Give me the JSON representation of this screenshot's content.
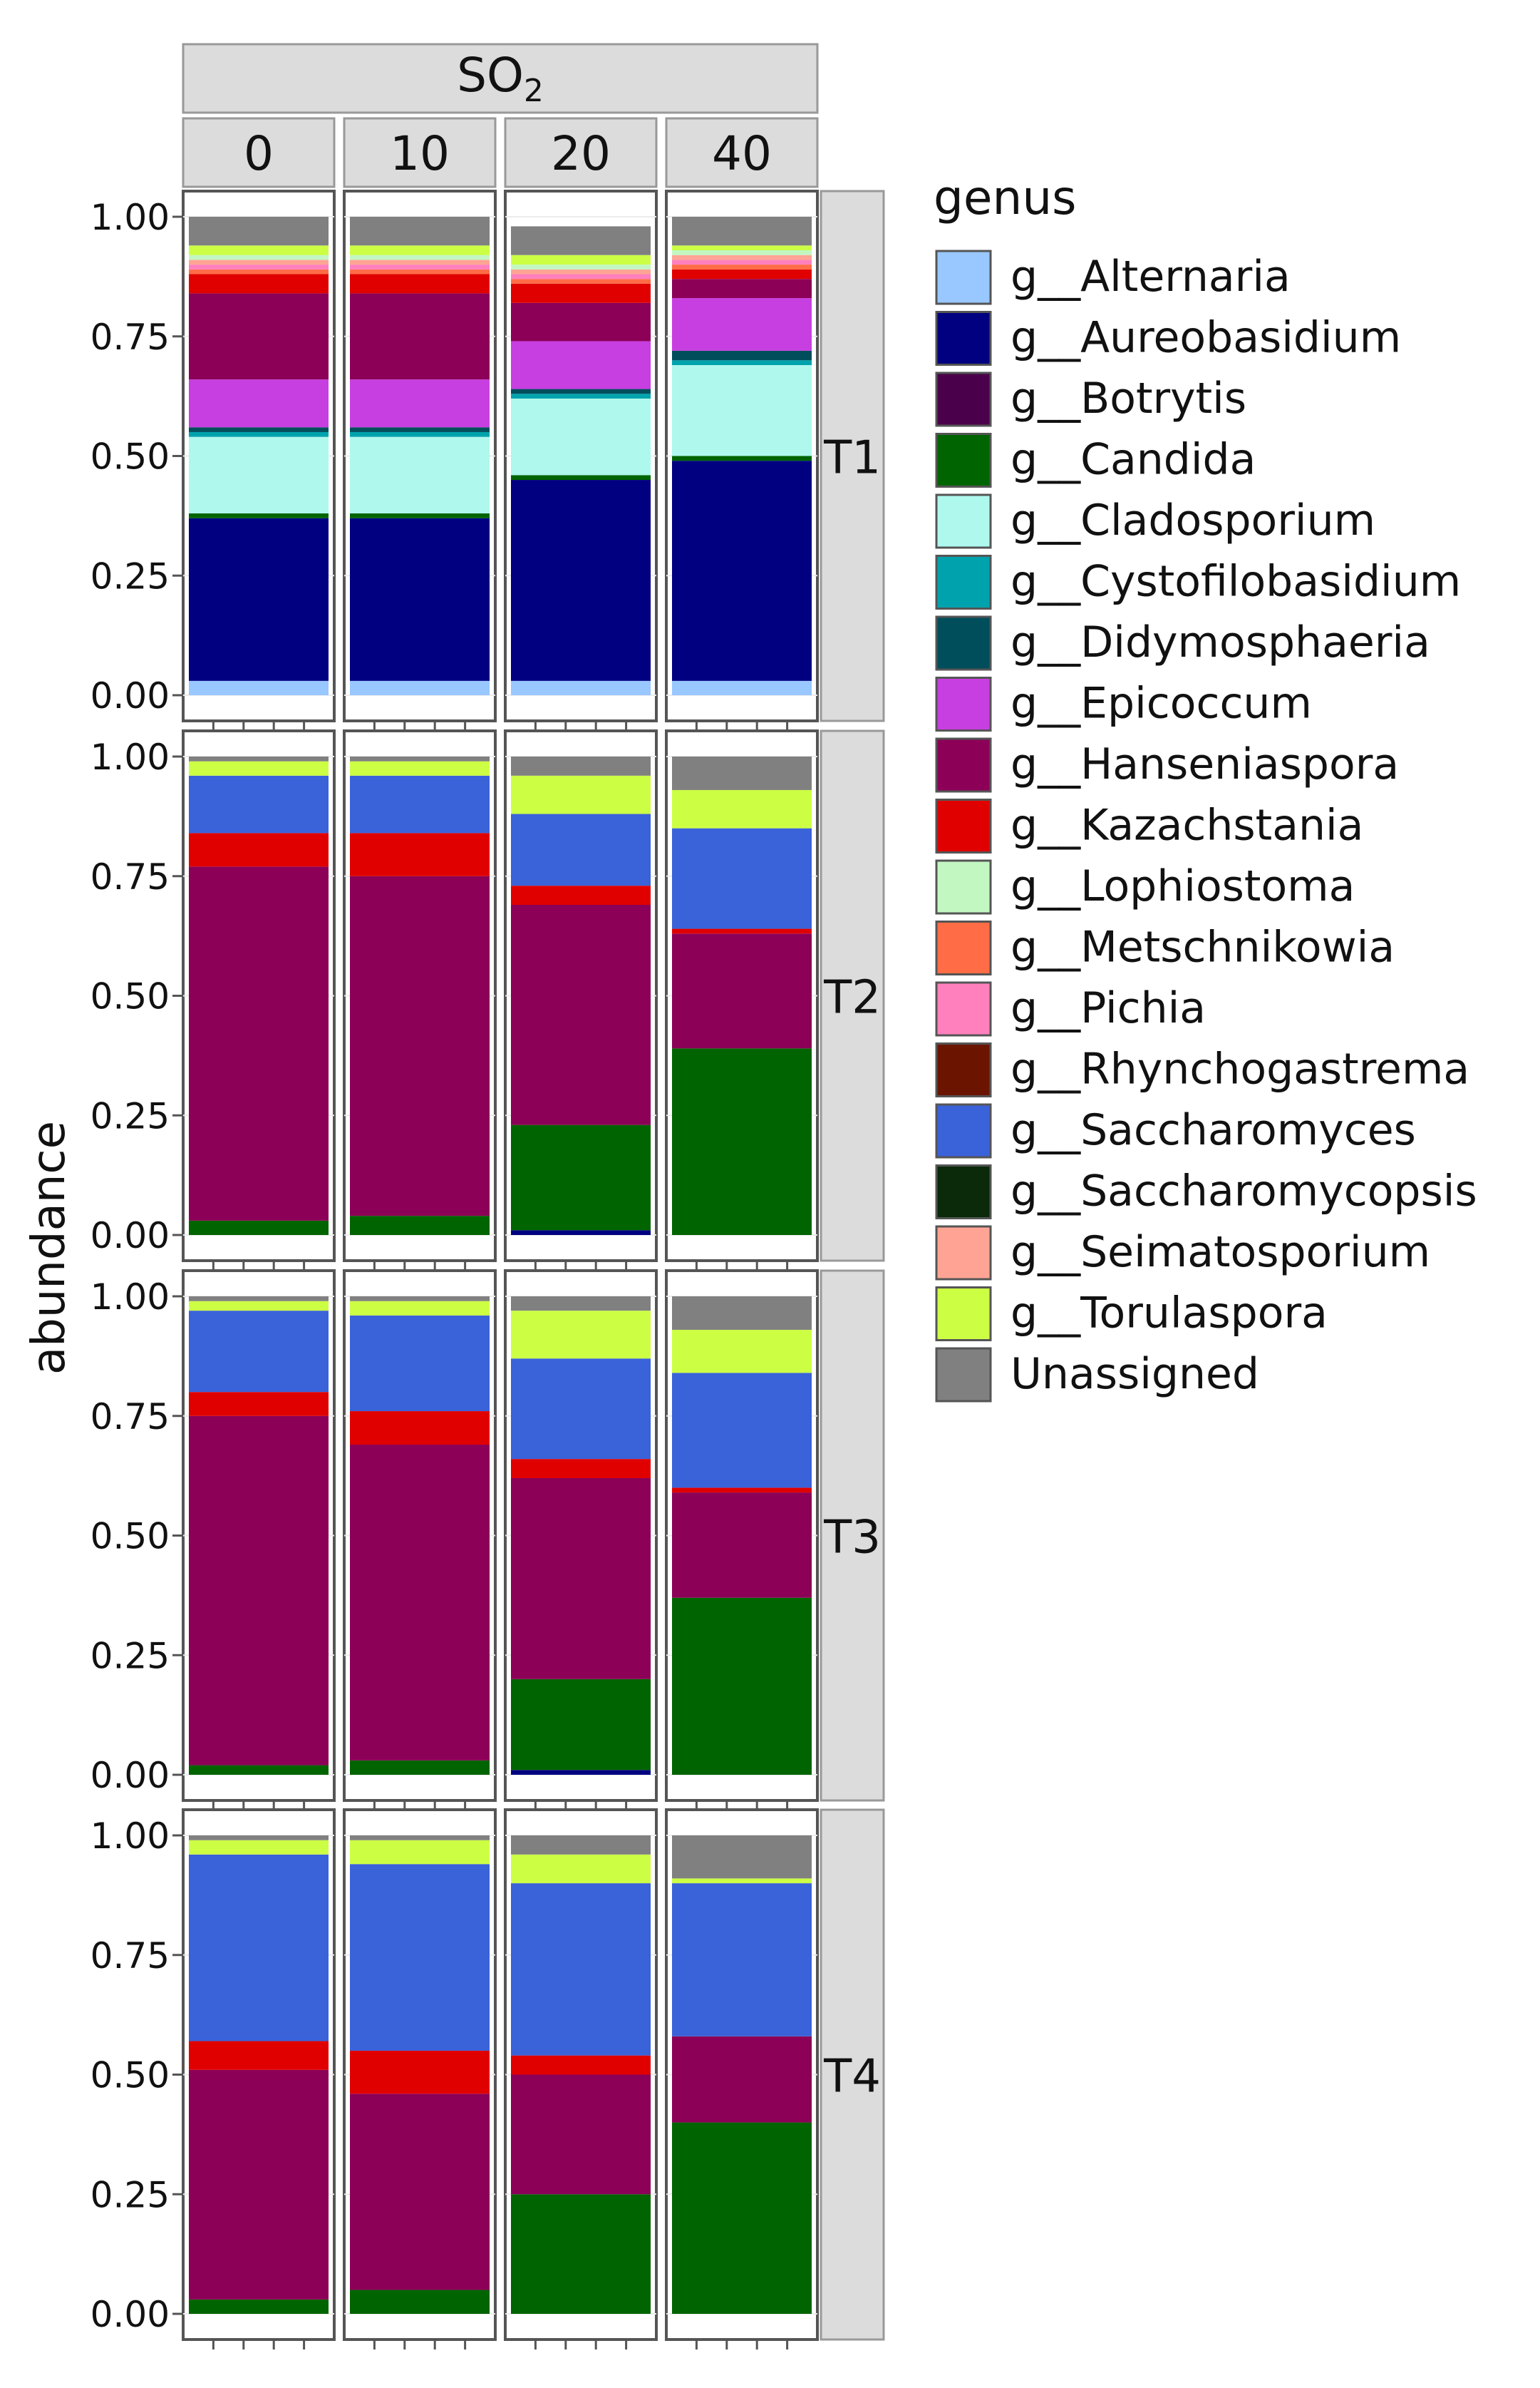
{
  "strip_top": {
    "main": "SO",
    "main_sub": "2"
  },
  "legend_title": "genus",
  "ylabel": "abundance",
  "genera": [
    {
      "name": "g__Alternaria",
      "color": "#99c7ff"
    },
    {
      "name": "g__Aureobasidium",
      "color": "#000080"
    },
    {
      "name": "g__Botrytis",
      "color": "#4a004a"
    },
    {
      "name": "g__Candida",
      "color": "#006400"
    },
    {
      "name": "g__Cladosporium",
      "color": "#aff8ee"
    },
    {
      "name": "g__Cystofilobasidium",
      "color": "#00a3ad"
    },
    {
      "name": "g__Didymosphaeria",
      "color": "#004d5c"
    },
    {
      "name": "g__Epicoccum",
      "color": "#c73fe0"
    },
    {
      "name": "g__Hanseniaspora",
      "color": "#8c0057"
    },
    {
      "name": "g__Kazachstania",
      "color": "#e00000"
    },
    {
      "name": "g__Lophiostoma",
      "color": "#c2f7c2"
    },
    {
      "name": "g__Metschnikowia",
      "color": "#ff6c46"
    },
    {
      "name": "g__Pichia",
      "color": "#ff80bd"
    },
    {
      "name": "g__Rhynchogastrema",
      "color": "#6b1500"
    },
    {
      "name": "g__Saccharomyces",
      "color": "#3a62d9"
    },
    {
      "name": "g__Saccharomycopsis",
      "color": "#0a2a0a"
    },
    {
      "name": "g__Seimatosporium",
      "color": "#ffa494"
    },
    {
      "name": "g__Torulaspora",
      "color": "#ccff44"
    },
    {
      "name": "Unassigned",
      "color": "#808080"
    }
  ],
  "chart_data": {
    "type": "bar",
    "stacked": true,
    "facet_columns_variable": "SO2",
    "facet_columns": [
      "0",
      "10",
      "20",
      "40"
    ],
    "facet_rows": [
      "T1",
      "T2",
      "T3",
      "T4"
    ],
    "ylabel": "abundance",
    "ylim": [
      0,
      1
    ],
    "yticks": [
      "0.00",
      "0.25",
      "0.50",
      "0.75",
      "1.00"
    ],
    "legend_title": "genus",
    "legend_position": "right",
    "panels": [
      {
        "row": "T1",
        "col": "0",
        "stack": [
          {
            "genus": "g__Alternaria",
            "value": 0.03
          },
          {
            "genus": "g__Aureobasidium",
            "value": 0.34
          },
          {
            "genus": "g__Candida",
            "value": 0.01
          },
          {
            "genus": "g__Cladosporium",
            "value": 0.16
          },
          {
            "genus": "g__Cystofilobasidium",
            "value": 0.01
          },
          {
            "genus": "g__Didymosphaeria",
            "value": 0.01
          },
          {
            "genus": "g__Epicoccum",
            "value": 0.1
          },
          {
            "genus": "g__Hanseniaspora",
            "value": 0.18
          },
          {
            "genus": "g__Kazachstania",
            "value": 0.04
          },
          {
            "genus": "g__Metschnikowia",
            "value": 0.01
          },
          {
            "genus": "g__Pichia",
            "value": 0.01
          },
          {
            "genus": "g__Seimatosporium",
            "value": 0.01
          },
          {
            "genus": "g__Lophiostoma",
            "value": 0.01
          },
          {
            "genus": "g__Torulaspora",
            "value": 0.02
          },
          {
            "genus": "Unassigned",
            "value": 0.06
          }
        ]
      },
      {
        "row": "T1",
        "col": "10",
        "stack": [
          {
            "genus": "g__Alternaria",
            "value": 0.03
          },
          {
            "genus": "g__Aureobasidium",
            "value": 0.34
          },
          {
            "genus": "g__Candida",
            "value": 0.01
          },
          {
            "genus": "g__Cladosporium",
            "value": 0.16
          },
          {
            "genus": "g__Cystofilobasidium",
            "value": 0.01
          },
          {
            "genus": "g__Didymosphaeria",
            "value": 0.01
          },
          {
            "genus": "g__Epicoccum",
            "value": 0.1
          },
          {
            "genus": "g__Hanseniaspora",
            "value": 0.18
          },
          {
            "genus": "g__Kazachstania",
            "value": 0.04
          },
          {
            "genus": "g__Metschnikowia",
            "value": 0.01
          },
          {
            "genus": "g__Pichia",
            "value": 0.01
          },
          {
            "genus": "g__Seimatosporium",
            "value": 0.01
          },
          {
            "genus": "g__Lophiostoma",
            "value": 0.01
          },
          {
            "genus": "g__Torulaspora",
            "value": 0.02
          },
          {
            "genus": "Unassigned",
            "value": 0.06
          }
        ]
      },
      {
        "row": "T1",
        "col": "20",
        "stack": [
          {
            "genus": "g__Alternaria",
            "value": 0.03
          },
          {
            "genus": "g__Aureobasidium",
            "value": 0.42
          },
          {
            "genus": "g__Candida",
            "value": 0.01
          },
          {
            "genus": "g__Cladosporium",
            "value": 0.16
          },
          {
            "genus": "g__Cystofilobasidium",
            "value": 0.01
          },
          {
            "genus": "g__Didymosphaeria",
            "value": 0.01
          },
          {
            "genus": "g__Epicoccum",
            "value": 0.1
          },
          {
            "genus": "g__Hanseniaspora",
            "value": 0.08
          },
          {
            "genus": "g__Kazachstania",
            "value": 0.04
          },
          {
            "genus": "g__Metschnikowia",
            "value": 0.01
          },
          {
            "genus": "g__Pichia",
            "value": 0.01
          },
          {
            "genus": "g__Seimatosporium",
            "value": 0.01
          },
          {
            "genus": "g__Lophiostoma",
            "value": 0.01
          },
          {
            "genus": "g__Torulaspora",
            "value": 0.02
          },
          {
            "genus": "Unassigned",
            "value": 0.06
          }
        ]
      },
      {
        "row": "T1",
        "col": "40",
        "stack": [
          {
            "genus": "g__Alternaria",
            "value": 0.03
          },
          {
            "genus": "g__Aureobasidium",
            "value": 0.46
          },
          {
            "genus": "g__Candida",
            "value": 0.01
          },
          {
            "genus": "g__Cladosporium",
            "value": 0.19
          },
          {
            "genus": "g__Cystofilobasidium",
            "value": 0.01
          },
          {
            "genus": "g__Didymosphaeria",
            "value": 0.02
          },
          {
            "genus": "g__Epicoccum",
            "value": 0.11
          },
          {
            "genus": "g__Hanseniaspora",
            "value": 0.04
          },
          {
            "genus": "g__Kazachstania",
            "value": 0.02
          },
          {
            "genus": "g__Metschnikowia",
            "value": 0.01
          },
          {
            "genus": "g__Pichia",
            "value": 0.01
          },
          {
            "genus": "g__Seimatosporium",
            "value": 0.01
          },
          {
            "genus": "g__Lophiostoma",
            "value": 0.01
          },
          {
            "genus": "g__Torulaspora",
            "value": 0.01
          },
          {
            "genus": "Unassigned",
            "value": 0.06
          }
        ]
      },
      {
        "row": "T2",
        "col": "0",
        "stack": [
          {
            "genus": "g__Candida",
            "value": 0.03
          },
          {
            "genus": "g__Hanseniaspora",
            "value": 0.74
          },
          {
            "genus": "g__Kazachstania",
            "value": 0.07
          },
          {
            "genus": "g__Saccharomyces",
            "value": 0.12
          },
          {
            "genus": "g__Torulaspora",
            "value": 0.03
          },
          {
            "genus": "Unassigned",
            "value": 0.01
          }
        ]
      },
      {
        "row": "T2",
        "col": "10",
        "stack": [
          {
            "genus": "g__Candida",
            "value": 0.04
          },
          {
            "genus": "g__Hanseniaspora",
            "value": 0.71
          },
          {
            "genus": "g__Kazachstania",
            "value": 0.09
          },
          {
            "genus": "g__Saccharomyces",
            "value": 0.12
          },
          {
            "genus": "g__Torulaspora",
            "value": 0.03
          },
          {
            "genus": "Unassigned",
            "value": 0.01
          }
        ]
      },
      {
        "row": "T2",
        "col": "20",
        "stack": [
          {
            "genus": "g__Aureobasidium",
            "value": 0.01
          },
          {
            "genus": "g__Candida",
            "value": 0.22
          },
          {
            "genus": "g__Hanseniaspora",
            "value": 0.46
          },
          {
            "genus": "g__Kazachstania",
            "value": 0.04
          },
          {
            "genus": "g__Saccharomyces",
            "value": 0.15
          },
          {
            "genus": "g__Torulaspora",
            "value": 0.08
          },
          {
            "genus": "Unassigned",
            "value": 0.04
          }
        ]
      },
      {
        "row": "T2",
        "col": "40",
        "stack": [
          {
            "genus": "g__Candida",
            "value": 0.39
          },
          {
            "genus": "g__Hanseniaspora",
            "value": 0.24
          },
          {
            "genus": "g__Kazachstania",
            "value": 0.01
          },
          {
            "genus": "g__Saccharomyces",
            "value": 0.21
          },
          {
            "genus": "g__Torulaspora",
            "value": 0.08
          },
          {
            "genus": "Unassigned",
            "value": 0.07
          }
        ]
      },
      {
        "row": "T3",
        "col": "0",
        "stack": [
          {
            "genus": "g__Candida",
            "value": 0.02
          },
          {
            "genus": "g__Hanseniaspora",
            "value": 0.73
          },
          {
            "genus": "g__Kazachstania",
            "value": 0.05
          },
          {
            "genus": "g__Saccharomyces",
            "value": 0.17
          },
          {
            "genus": "g__Torulaspora",
            "value": 0.02
          },
          {
            "genus": "Unassigned",
            "value": 0.01
          }
        ]
      },
      {
        "row": "T3",
        "col": "10",
        "stack": [
          {
            "genus": "g__Candida",
            "value": 0.03
          },
          {
            "genus": "g__Hanseniaspora",
            "value": 0.66
          },
          {
            "genus": "g__Kazachstania",
            "value": 0.07
          },
          {
            "genus": "g__Saccharomyces",
            "value": 0.2
          },
          {
            "genus": "g__Torulaspora",
            "value": 0.03
          },
          {
            "genus": "Unassigned",
            "value": 0.01
          }
        ]
      },
      {
        "row": "T3",
        "col": "20",
        "stack": [
          {
            "genus": "g__Aureobasidium",
            "value": 0.01
          },
          {
            "genus": "g__Candida",
            "value": 0.19
          },
          {
            "genus": "g__Hanseniaspora",
            "value": 0.42
          },
          {
            "genus": "g__Kazachstania",
            "value": 0.04
          },
          {
            "genus": "g__Saccharomyces",
            "value": 0.21
          },
          {
            "genus": "g__Torulaspora",
            "value": 0.1
          },
          {
            "genus": "Unassigned",
            "value": 0.03
          }
        ]
      },
      {
        "row": "T3",
        "col": "40",
        "stack": [
          {
            "genus": "g__Candida",
            "value": 0.37
          },
          {
            "genus": "g__Hanseniaspora",
            "value": 0.22
          },
          {
            "genus": "g__Kazachstania",
            "value": 0.01
          },
          {
            "genus": "g__Saccharomyces",
            "value": 0.24
          },
          {
            "genus": "g__Torulaspora",
            "value": 0.09
          },
          {
            "genus": "Unassigned",
            "value": 0.07
          }
        ]
      },
      {
        "row": "T4",
        "col": "0",
        "stack": [
          {
            "genus": "g__Candida",
            "value": 0.03
          },
          {
            "genus": "g__Hanseniaspora",
            "value": 0.48
          },
          {
            "genus": "g__Kazachstania",
            "value": 0.06
          },
          {
            "genus": "g__Saccharomyces",
            "value": 0.39
          },
          {
            "genus": "g__Torulaspora",
            "value": 0.03
          },
          {
            "genus": "Unassigned",
            "value": 0.01
          }
        ]
      },
      {
        "row": "T4",
        "col": "10",
        "stack": [
          {
            "genus": "g__Candida",
            "value": 0.05
          },
          {
            "genus": "g__Hanseniaspora",
            "value": 0.41
          },
          {
            "genus": "g__Kazachstania",
            "value": 0.09
          },
          {
            "genus": "g__Saccharomyces",
            "value": 0.39
          },
          {
            "genus": "g__Torulaspora",
            "value": 0.05
          },
          {
            "genus": "Unassigned",
            "value": 0.01
          }
        ]
      },
      {
        "row": "T4",
        "col": "20",
        "stack": [
          {
            "genus": "g__Candida",
            "value": 0.25
          },
          {
            "genus": "g__Hanseniaspora",
            "value": 0.25
          },
          {
            "genus": "g__Kazachstania",
            "value": 0.04
          },
          {
            "genus": "g__Saccharomyces",
            "value": 0.36
          },
          {
            "genus": "g__Torulaspora",
            "value": 0.06
          },
          {
            "genus": "Unassigned",
            "value": 0.04
          }
        ]
      },
      {
        "row": "T4",
        "col": "40",
        "stack": [
          {
            "genus": "g__Candida",
            "value": 0.4
          },
          {
            "genus": "g__Hanseniaspora",
            "value": 0.18
          },
          {
            "genus": "g__Saccharomyces",
            "value": 0.32
          },
          {
            "genus": "g__Torulaspora",
            "value": 0.01
          },
          {
            "genus": "Unassigned",
            "value": 0.09
          }
        ]
      }
    ]
  }
}
